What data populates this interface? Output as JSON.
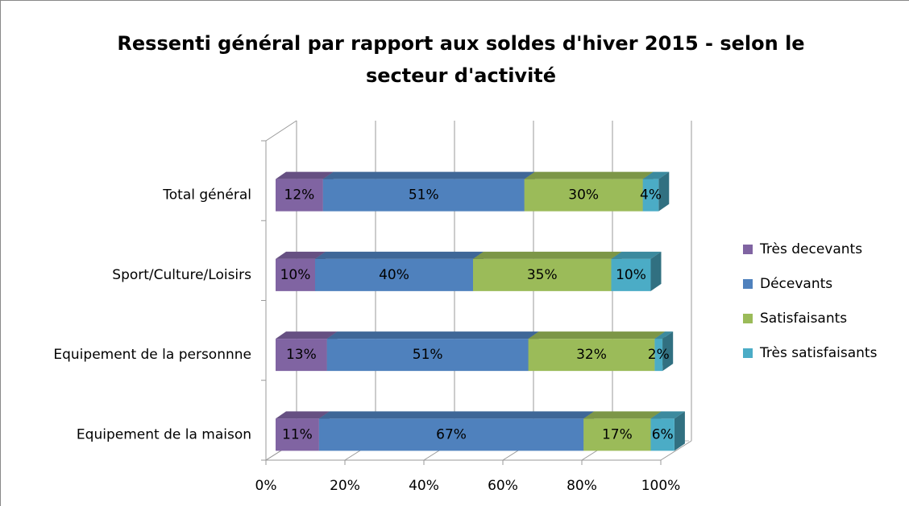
{
  "chart_data": {
    "type": "stacked-bar-horizontal-3d",
    "title": "Ressenti général par rapport aux soldes d'hiver 2015 - selon le secteur d'activité",
    "categories": [
      "Total général",
      "Sport/Culture/Loisirs",
      "Equipement de la personnne",
      "Equipement de la maison"
    ],
    "series": [
      {
        "name": "Très decevants",
        "color": "#8064a2",
        "values": [
          12,
          10,
          13,
          11
        ],
        "value_labels": [
          "12%",
          "10%",
          "13%",
          "11%"
        ]
      },
      {
        "name": "Décevants",
        "color": "#4f81bd",
        "values": [
          51,
          40,
          51,
          67
        ],
        "value_labels": [
          "51%",
          "40%",
          "51%",
          "67%"
        ]
      },
      {
        "name": "Satisfaisants",
        "color": "#9bbb59",
        "values": [
          30,
          35,
          32,
          17
        ],
        "value_labels": [
          "30%",
          "35%",
          "32%",
          "17%"
        ]
      },
      {
        "name": "Très satisfaisants",
        "color": "#4bacc6",
        "values": [
          4,
          10,
          2,
          6
        ],
        "value_labels": [
          "4%",
          "10%",
          "2%",
          "6%"
        ]
      }
    ],
    "xlim": [
      0,
      100
    ],
    "xticks": [
      {
        "value": 0,
        "label": "0%"
      },
      {
        "value": 20,
        "label": "20%"
      },
      {
        "value": 40,
        "label": "40%"
      },
      {
        "value": 60,
        "label": "60%"
      },
      {
        "value": 80,
        "label": "80%"
      },
      {
        "value": 100,
        "label": "100%"
      }
    ],
    "grid": true,
    "legend": "right"
  }
}
